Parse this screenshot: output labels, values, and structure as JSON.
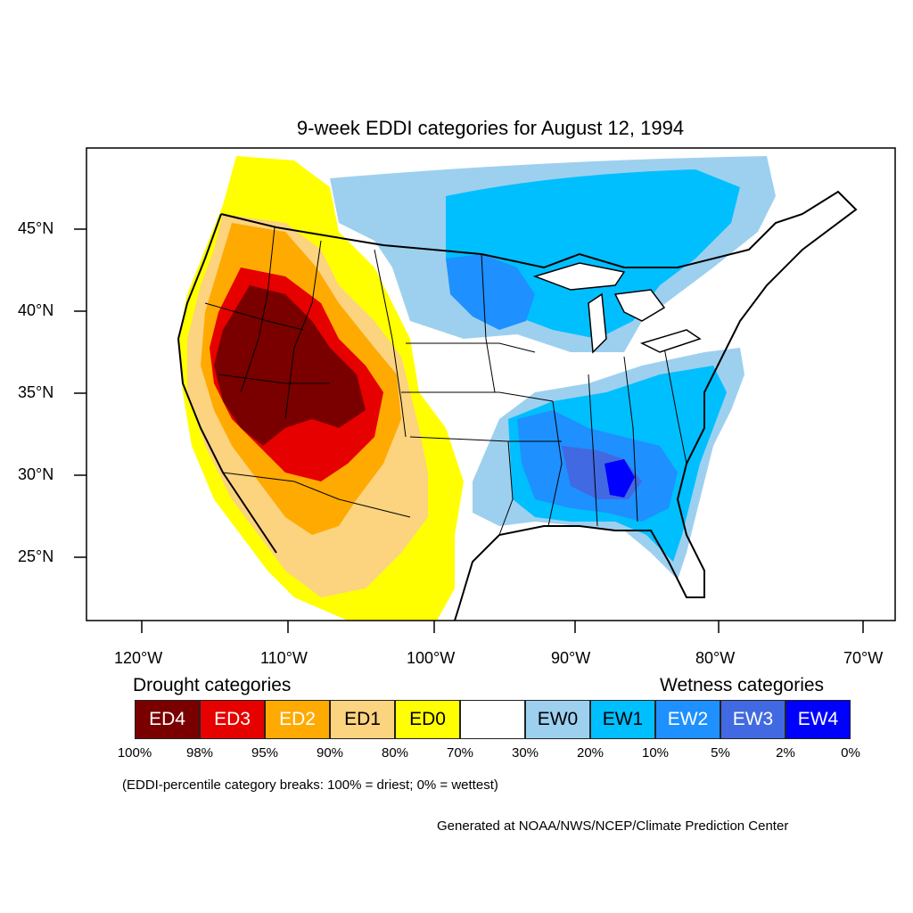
{
  "title": "9-week EDDI categories for August 12, 1994",
  "lat_labels": [
    "45°N",
    "40°N",
    "35°N",
    "30°N",
    "25°N"
  ],
  "lon_labels": [
    "120°W",
    "110°W",
    "100°W",
    "90°W",
    "80°W",
    "70°W"
  ],
  "legend": {
    "drought_heading": "Drought categories",
    "wetness_heading": "Wetness categories",
    "categories": [
      {
        "label": "ED4",
        "color": "#7a0000",
        "text_color": "#ffffff"
      },
      {
        "label": "ED3",
        "color": "#e60000",
        "text_color": "#ffffff"
      },
      {
        "label": "ED2",
        "color": "#ffaa00",
        "text_color": "#ffffff"
      },
      {
        "label": "ED1",
        "color": "#fcd37f",
        "text_color": "#000000"
      },
      {
        "label": "ED0",
        "color": "#ffff00",
        "text_color": "#000000"
      },
      {
        "label": "",
        "color": "#ffffff",
        "text_color": "#000000"
      },
      {
        "label": "EW0",
        "color": "#9dd0ef",
        "text_color": "#000000"
      },
      {
        "label": "EW1",
        "color": "#00bfff",
        "text_color": "#000000"
      },
      {
        "label": "EW2",
        "color": "#1e90ff",
        "text_color": "#ffffff"
      },
      {
        "label": "EW3",
        "color": "#4169e1",
        "text_color": "#ffffff"
      },
      {
        "label": "EW4",
        "color": "#0000ff",
        "text_color": "#ffffff"
      }
    ],
    "breaks": [
      "100%",
      "98%",
      "95%",
      "90%",
      "80%",
      "70%",
      "30%",
      "20%",
      "10%",
      "5%",
      "2%",
      "0%"
    ]
  },
  "note": "(EDDI-percentile category breaks: 100% = driest; 0% = wettest)",
  "credit": "Generated at NOAA/NWS/NCEP/Climate Prediction Center"
}
